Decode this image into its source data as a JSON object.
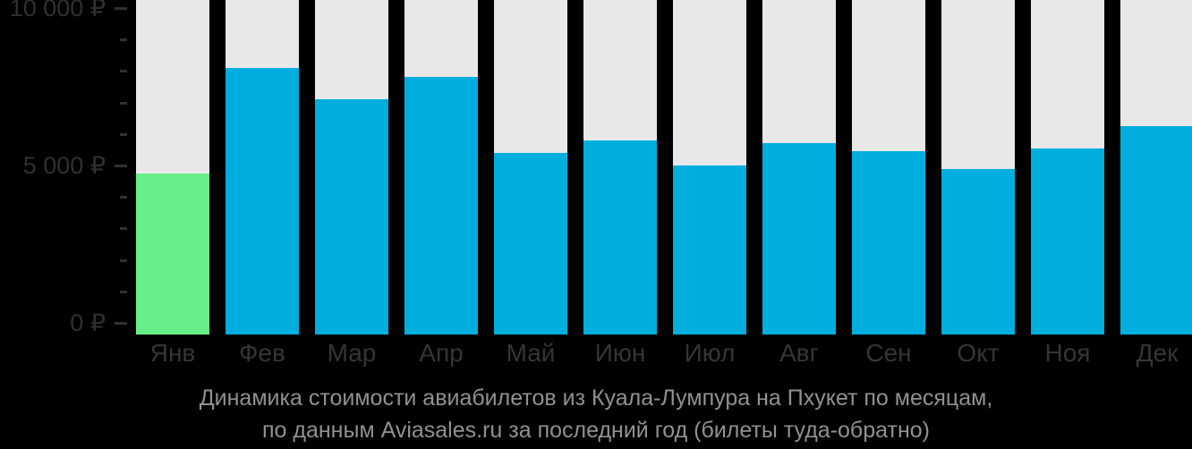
{
  "chart_data": {
    "type": "bar",
    "title": "Динамика стоимости авиабилетов из Куала-Лумпура на Пхукет по месяцам,",
    "subtitle": "по данным Aviasales.ru за последний год (билеты туда-обратно)",
    "categories": [
      "Янв",
      "Фев",
      "Мар",
      "Апр",
      "Май",
      "Июн",
      "Июл",
      "Авг",
      "Сен",
      "Окт",
      "Ноя",
      "Дек"
    ],
    "values": [
      4750,
      8100,
      7100,
      7800,
      5400,
      5800,
      5000,
      5700,
      5450,
      4900,
      5550,
      6250
    ],
    "unit": "₽",
    "ylabel": "",
    "xlabel": "",
    "ylim": [
      0,
      10000
    ],
    "yticks": [
      {
        "value": 0,
        "label": "0 ₽"
      },
      {
        "value": 5000,
        "label": "5 000 ₽"
      },
      {
        "value": 10000,
        "label": "10 000 ₽"
      }
    ],
    "minor_ticks": [
      1000,
      2000,
      3000,
      4000,
      6000,
      7000,
      8000,
      9000
    ],
    "highlight_index": 0,
    "legend": "none",
    "grid": "off",
    "colors": {
      "bar": "#00AEDE",
      "bar_highlight": "#68EE88",
      "column_track": "#E8E8E8",
      "background": "#000000",
      "axis_text": "#303034",
      "month_text": "#353539",
      "title_text": "#909095"
    }
  }
}
